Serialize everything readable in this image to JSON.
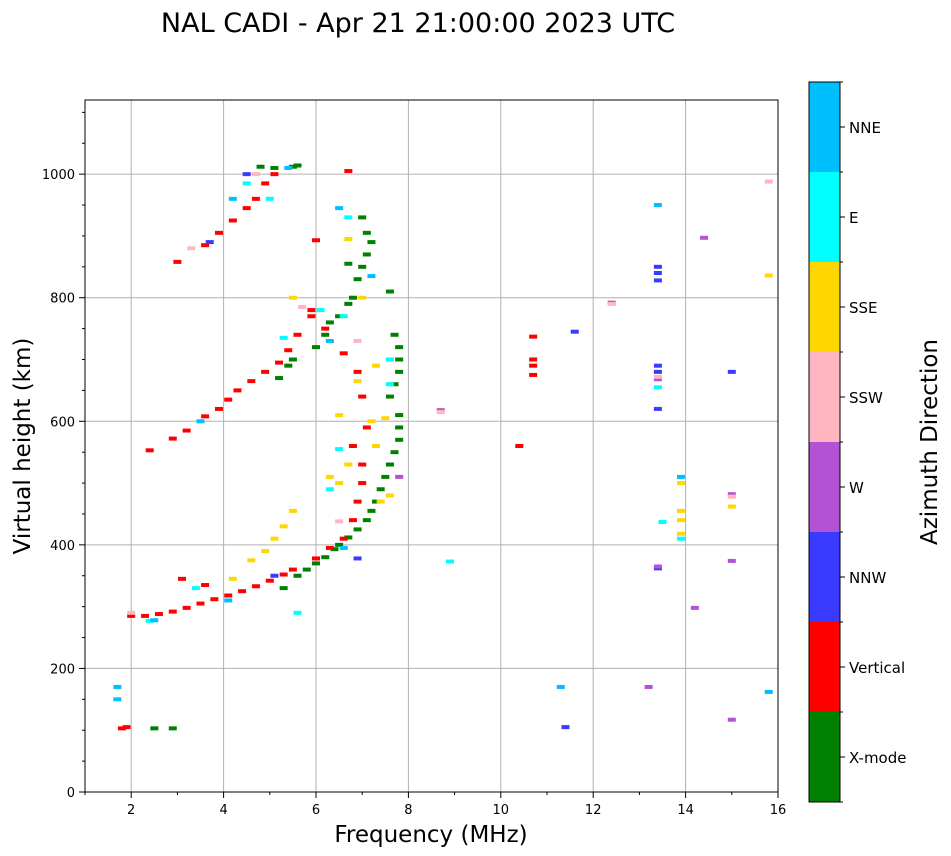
{
  "chart_data": {
    "type": "scatter",
    "title": "NAL CADI - Apr 21 21:00:00 2023 UTC",
    "xlabel": "Frequency (MHz)",
    "ylabel": "Virtual height (km)",
    "xlim": [
      1,
      16
    ],
    "ylim": [
      0,
      1120
    ],
    "xticks": [
      2,
      4,
      6,
      8,
      10,
      12,
      14,
      16
    ],
    "yticks": [
      0,
      200,
      400,
      600,
      800,
      1000
    ],
    "grid": true,
    "colorbar": {
      "label": "Azimuth Direction",
      "position": "right",
      "categories": [
        {
          "name": "X-mode",
          "color": "#008000"
        },
        {
          "name": "Vertical",
          "color": "#ff0000"
        },
        {
          "name": "NNW",
          "color": "#3a3aff"
        },
        {
          "name": "W",
          "color": "#b452d6"
        },
        {
          "name": "SSW",
          "color": "#ffb6c1"
        },
        {
          "name": "SSE",
          "color": "#ffd700"
        },
        {
          "name": "E",
          "color": "#00ffff"
        },
        {
          "name": "NNE",
          "color": "#00bfff"
        }
      ]
    },
    "series": [
      {
        "name": "X-mode",
        "points": [
          [
            2.5,
            103
          ],
          [
            2.9,
            103
          ],
          [
            4.8,
            1012
          ],
          [
            5.1,
            1010
          ],
          [
            5.5,
            1012
          ],
          [
            5.6,
            1014
          ],
          [
            6.0,
            720
          ],
          [
            6.2,
            740
          ],
          [
            6.3,
            760
          ],
          [
            6.5,
            770
          ],
          [
            6.7,
            790
          ],
          [
            6.8,
            800
          ],
          [
            6.9,
            830
          ],
          [
            7.0,
            850
          ],
          [
            7.1,
            870
          ],
          [
            7.2,
            890
          ],
          [
            7.0,
            930
          ],
          [
            7.1,
            905
          ],
          [
            6.7,
            855
          ],
          [
            5.3,
            330
          ],
          [
            5.6,
            350
          ],
          [
            5.8,
            360
          ],
          [
            6.0,
            370
          ],
          [
            6.2,
            380
          ],
          [
            6.4,
            393
          ],
          [
            6.5,
            400
          ],
          [
            6.7,
            412
          ],
          [
            6.9,
            425
          ],
          [
            7.1,
            440
          ],
          [
            7.2,
            455
          ],
          [
            7.3,
            470
          ],
          [
            7.4,
            490
          ],
          [
            7.5,
            510
          ],
          [
            7.6,
            530
          ],
          [
            7.7,
            550
          ],
          [
            7.8,
            570
          ],
          [
            7.8,
            590
          ],
          [
            7.8,
            610
          ],
          [
            7.6,
            640
          ],
          [
            7.7,
            660
          ],
          [
            7.8,
            680
          ],
          [
            7.8,
            700
          ],
          [
            7.8,
            720
          ],
          [
            7.7,
            740
          ],
          [
            7.6,
            810
          ],
          [
            5.2,
            670
          ],
          [
            5.4,
            690
          ],
          [
            5.5,
            700
          ]
        ]
      },
      {
        "name": "Vertical",
        "points": [
          [
            1.8,
            103
          ],
          [
            1.9,
            105
          ],
          [
            2.0,
            285
          ],
          [
            2.3,
            285
          ],
          [
            2.6,
            288
          ],
          [
            2.9,
            292
          ],
          [
            3.2,
            298
          ],
          [
            3.5,
            305
          ],
          [
            3.8,
            312
          ],
          [
            4.1,
            318
          ],
          [
            4.4,
            325
          ],
          [
            4.7,
            333
          ],
          [
            5.0,
            342
          ],
          [
            5.3,
            352
          ],
          [
            5.5,
            360
          ],
          [
            6.0,
            378
          ],
          [
            6.3,
            395
          ],
          [
            6.6,
            410
          ],
          [
            6.8,
            440
          ],
          [
            6.9,
            470
          ],
          [
            7.0,
            500
          ],
          [
            7.0,
            530
          ],
          [
            6.8,
            560
          ],
          [
            7.1,
            590
          ],
          [
            7.0,
            640
          ],
          [
            6.9,
            680
          ],
          [
            6.6,
            710
          ],
          [
            6.2,
            750
          ],
          [
            5.9,
            780
          ],
          [
            2.4,
            553
          ],
          [
            2.9,
            572
          ],
          [
            3.2,
            585
          ],
          [
            3.6,
            608
          ],
          [
            3.9,
            620
          ],
          [
            4.1,
            635
          ],
          [
            4.3,
            650
          ],
          [
            4.6,
            665
          ],
          [
            4.9,
            680
          ],
          [
            5.2,
            695
          ],
          [
            5.4,
            715
          ],
          [
            5.6,
            740
          ],
          [
            5.9,
            770
          ],
          [
            3.0,
            858
          ],
          [
            3.6,
            885
          ],
          [
            3.9,
            905
          ],
          [
            4.2,
            925
          ],
          [
            4.5,
            945
          ],
          [
            4.7,
            960
          ],
          [
            4.9,
            985
          ],
          [
            5.1,
            1000
          ],
          [
            6.0,
            893
          ],
          [
            6.7,
            1005
          ],
          [
            10.7,
            690
          ],
          [
            10.7,
            675
          ],
          [
            10.7,
            700
          ],
          [
            10.7,
            737
          ],
          [
            10.4,
            560
          ],
          [
            3.1,
            345
          ],
          [
            3.6,
            335
          ]
        ]
      },
      {
        "name": "NNW",
        "points": [
          [
            13.4,
            690
          ],
          [
            13.4,
            680
          ],
          [
            13.4,
            620
          ],
          [
            13.4,
            362
          ],
          [
            13.4,
            850
          ],
          [
            13.4,
            840
          ],
          [
            13.4,
            828
          ],
          [
            15.0,
            680
          ],
          [
            11.6,
            745
          ],
          [
            11.4,
            105
          ],
          [
            4.5,
            1000
          ],
          [
            3.7,
            890
          ],
          [
            6.9,
            378
          ],
          [
            5.1,
            350
          ]
        ]
      },
      {
        "name": "W",
        "points": [
          [
            8.7,
            618
          ],
          [
            13.4,
            668
          ],
          [
            13.4,
            365
          ],
          [
            13.2,
            170
          ],
          [
            14.2,
            298
          ],
          [
            15.0,
            482
          ],
          [
            15.0,
            374
          ],
          [
            15.0,
            117
          ],
          [
            14.4,
            897
          ],
          [
            12.4,
            792
          ],
          [
            7.8,
            510
          ]
        ]
      },
      {
        "name": "SSW",
        "points": [
          [
            8.7,
            615
          ],
          [
            12.4,
            790
          ],
          [
            15.8,
            988
          ],
          [
            13.4,
            672
          ],
          [
            15.0,
            478
          ],
          [
            2.0,
            290
          ],
          [
            3.3,
            880
          ],
          [
            4.7,
            1000
          ],
          [
            6.5,
            438
          ],
          [
            5.7,
            785
          ],
          [
            6.9,
            730
          ]
        ]
      },
      {
        "name": "SSE",
        "points": [
          [
            13.9,
            418
          ],
          [
            13.9,
            440
          ],
          [
            13.9,
            455
          ],
          [
            13.9,
            500
          ],
          [
            15.0,
            462
          ],
          [
            15.8,
            836
          ],
          [
            4.2,
            345
          ],
          [
            4.6,
            375
          ],
          [
            4.9,
            390
          ],
          [
            5.1,
            410
          ],
          [
            5.3,
            430
          ],
          [
            5.5,
            455
          ],
          [
            6.3,
            510
          ],
          [
            6.5,
            610
          ],
          [
            6.9,
            665
          ],
          [
            7.2,
            600
          ],
          [
            7.3,
            560
          ],
          [
            7.3,
            690
          ],
          [
            7.5,
            605
          ],
          [
            7.6,
            480
          ],
          [
            7.4,
            470
          ],
          [
            5.5,
            800
          ],
          [
            7.0,
            800
          ],
          [
            6.7,
            895
          ],
          [
            6.5,
            500
          ],
          [
            6.7,
            530
          ]
        ]
      },
      {
        "name": "E",
        "points": [
          [
            13.5,
            437
          ],
          [
            13.4,
            655
          ],
          [
            13.9,
            410
          ],
          [
            8.9,
            373
          ],
          [
            2.4,
            277
          ],
          [
            3.4,
            330
          ],
          [
            5.6,
            290
          ],
          [
            6.3,
            490
          ],
          [
            6.5,
            555
          ],
          [
            6.6,
            770
          ],
          [
            6.7,
            930
          ],
          [
            7.6,
            700
          ],
          [
            7.6,
            660
          ],
          [
            4.5,
            985
          ],
          [
            5.0,
            960
          ],
          [
            5.3,
            735
          ],
          [
            6.1,
            780
          ]
        ]
      },
      {
        "name": "NNE",
        "points": [
          [
            1.7,
            170
          ],
          [
            1.7,
            150
          ],
          [
            11.3,
            170
          ],
          [
            15.8,
            162
          ],
          [
            13.9,
            510
          ],
          [
            13.4,
            950
          ],
          [
            2.5,
            278
          ],
          [
            3.5,
            600
          ],
          [
            4.1,
            310
          ],
          [
            5.4,
            1010
          ],
          [
            4.2,
            960
          ],
          [
            6.6,
            395
          ],
          [
            6.5,
            945
          ],
          [
            6.3,
            730
          ],
          [
            7.2,
            835
          ]
        ]
      }
    ]
  }
}
